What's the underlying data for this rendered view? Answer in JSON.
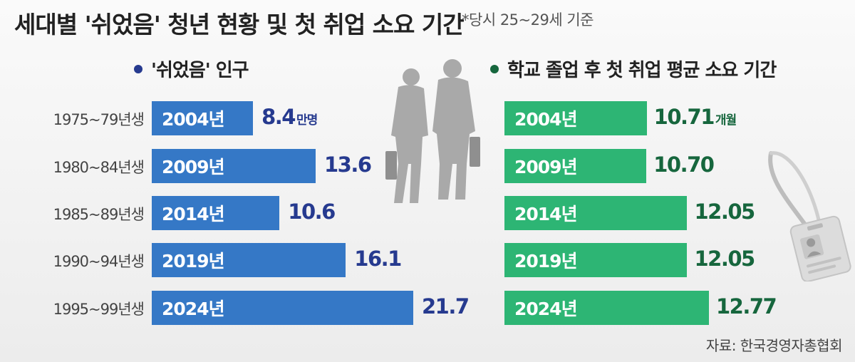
{
  "title": "세대별 '쉬었음' 청년 현황 및 첫 취업 소요 기간",
  "note": "*당시 25~29세 기준",
  "source": "자료: 한국경영자총협회",
  "colors": {
    "blue_bar": "#3578c6",
    "blue_value": "#263a8f",
    "green_bar": "#2db574",
    "green_value": "#16663d"
  },
  "icons": [
    "businessmen-silhouette-icon",
    "id-badge-icon"
  ],
  "chart_data": [
    {
      "type": "bar",
      "orientation": "horizontal",
      "title": "'쉬었음' 인구",
      "unit": "만명",
      "categories": [
        "1975~79년생",
        "1980~84년생",
        "1985~89년생",
        "1990~94년생",
        "1995~99년생"
      ],
      "bar_labels": [
        "2004년",
        "2009년",
        "2014년",
        "2019년",
        "2024년"
      ],
      "values": [
        8.4,
        13.6,
        10.6,
        16.1,
        21.7
      ],
      "value_labels": [
        "8.4",
        "13.6",
        "10.6",
        "16.1",
        "21.7"
      ]
    },
    {
      "type": "bar",
      "orientation": "horizontal",
      "title": "학교 졸업 후 첫 취업 평균 소요 기간",
      "unit": "개월",
      "categories": [
        "1975~79년생",
        "1980~84년생",
        "1985~89년생",
        "1990~94년생",
        "1995~99년생"
      ],
      "bar_labels": [
        "2004년",
        "2009년",
        "2014년",
        "2019년",
        "2024년"
      ],
      "values": [
        10.71,
        10.7,
        12.05,
        12.05,
        12.77
      ],
      "value_labels": [
        "10.71",
        "10.70",
        "12.05",
        "12.05",
        "12.77"
      ]
    }
  ]
}
